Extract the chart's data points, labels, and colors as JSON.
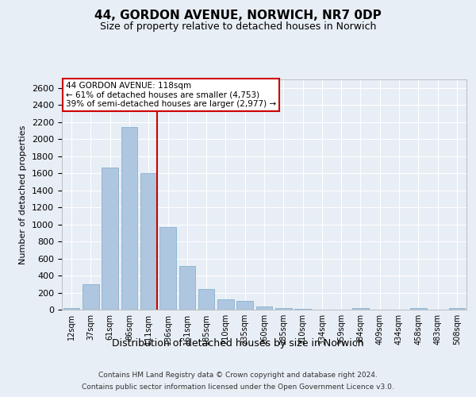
{
  "title": "44, GORDON AVENUE, NORWICH, NR7 0DP",
  "subtitle": "Size of property relative to detached houses in Norwich",
  "xlabel": "Distribution of detached houses by size in Norwich",
  "ylabel": "Number of detached properties",
  "footer_line1": "Contains HM Land Registry data © Crown copyright and database right 2024.",
  "footer_line2": "Contains public sector information licensed under the Open Government Licence v3.0.",
  "bar_labels": [
    "12sqm",
    "37sqm",
    "61sqm",
    "86sqm",
    "111sqm",
    "136sqm",
    "161sqm",
    "185sqm",
    "210sqm",
    "235sqm",
    "260sqm",
    "285sqm",
    "310sqm",
    "334sqm",
    "359sqm",
    "384sqm",
    "409sqm",
    "434sqm",
    "458sqm",
    "483sqm",
    "508sqm"
  ],
  "bar_values": [
    20,
    300,
    1670,
    2140,
    1600,
    970,
    510,
    245,
    120,
    100,
    40,
    15,
    5,
    2,
    2,
    15,
    2,
    0,
    20,
    2,
    20
  ],
  "bar_color": "#aec6df",
  "bar_edge_color": "#7aaacb",
  "background_color": "#e8eef5",
  "grid_color": "#ffffff",
  "marker_bar_index": 4,
  "marker_line_color": "#cc0000",
  "annotation_text": "44 GORDON AVENUE: 118sqm\n← 61% of detached houses are smaller (4,753)\n39% of semi-detached houses are larger (2,977) →",
  "annotation_box_color": "#ffffff",
  "annotation_box_edge_color": "#cc0000",
  "ylim": [
    0,
    2700
  ],
  "yticks": [
    0,
    200,
    400,
    600,
    800,
    1000,
    1200,
    1400,
    1600,
    1800,
    2000,
    2200,
    2400,
    2600
  ]
}
